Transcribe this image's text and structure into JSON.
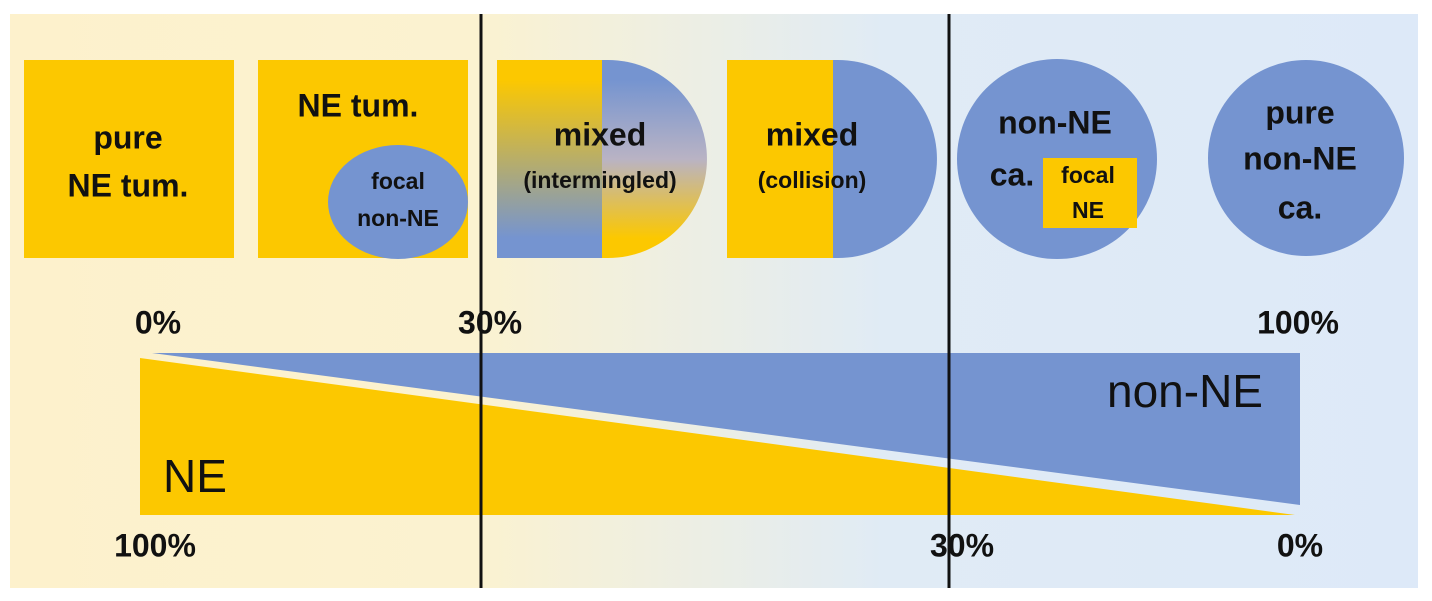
{
  "shapes": [
    {
      "lines": [
        "pure",
        "NE tum."
      ]
    },
    {
      "lines": [
        "NE tum."
      ],
      "inset": [
        "focal",
        "non-NE"
      ]
    },
    {
      "lines": [
        "mixed",
        "(intermingled)"
      ]
    },
    {
      "lines": [
        "mixed",
        "(collision)"
      ]
    },
    {
      "lines": [
        "non-NE",
        "ca."
      ],
      "inset": [
        "focal",
        "NE"
      ]
    },
    {
      "lines": [
        "pure",
        "non-NE",
        "ca."
      ]
    }
  ],
  "top_scale": [
    "0%",
    "30%",
    "100%"
  ],
  "bottom_scale": [
    "100%",
    "30%",
    "0%"
  ],
  "wedges": {
    "upper": "non-NE",
    "lower": "NE"
  }
}
